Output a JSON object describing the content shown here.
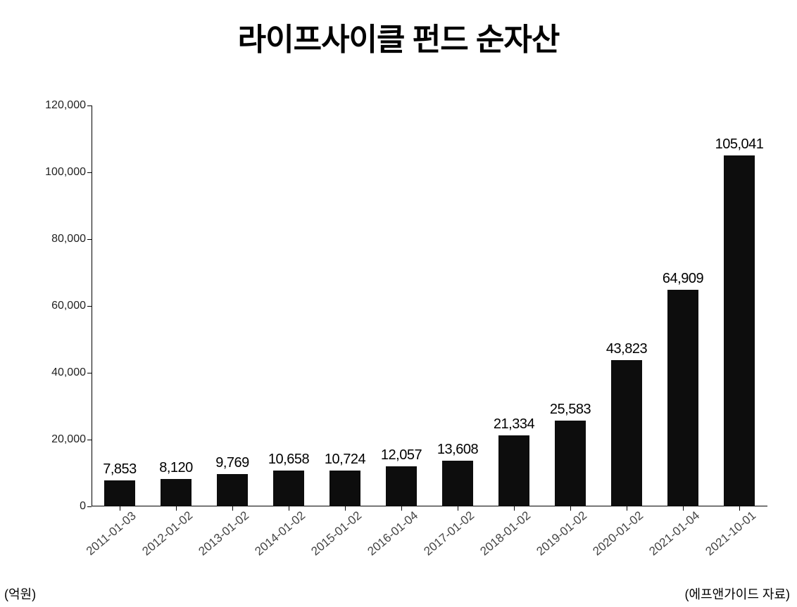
{
  "chart": {
    "type": "bar",
    "title": "라이프사이클 펀드 순자산",
    "title_fontsize": 44,
    "title_fontweight": 900,
    "title_color": "#000000",
    "background_color": "#ffffff",
    "bar_color": "#0d0d0d",
    "axis_color": "#000000",
    "text_color": "#000000",
    "data_label_fontsize": 20,
    "tick_label_fontsize": 16,
    "x_tick_fontsize": 17,
    "bar_width_ratio": 0.55,
    "y": {
      "min": 0,
      "max": 120000,
      "tick_step": 20000,
      "ticks": [
        0,
        20000,
        40000,
        60000,
        80000,
        100000,
        120000
      ],
      "tick_labels": [
        "0",
        "20,000",
        "40,000",
        "60,000",
        "80,000",
        "100,000",
        "120,000"
      ]
    },
    "categories": [
      "2011-01-03",
      "2012-01-02",
      "2013-01-02",
      "2014-01-02",
      "2015-01-02",
      "2016-01-04",
      "2017-01-02",
      "2018-01-02",
      "2019-01-02",
      "2020-01-02",
      "2021-01-04",
      "2021-10-01"
    ],
    "values": [
      7853,
      8120,
      9769,
      10658,
      10724,
      12057,
      13608,
      21334,
      25583,
      43823,
      64909,
      105041
    ],
    "value_labels": [
      "7,853",
      "8,120",
      "9,769",
      "10,658",
      "10,724",
      "12,057",
      "13,608",
      "21,334",
      "25,583",
      "43,823",
      "64,909",
      "105,041"
    ],
    "x_label_rotation_deg": -40,
    "footer_left": "(억원)",
    "footer_right": "(에프앤가이드 자료)"
  }
}
